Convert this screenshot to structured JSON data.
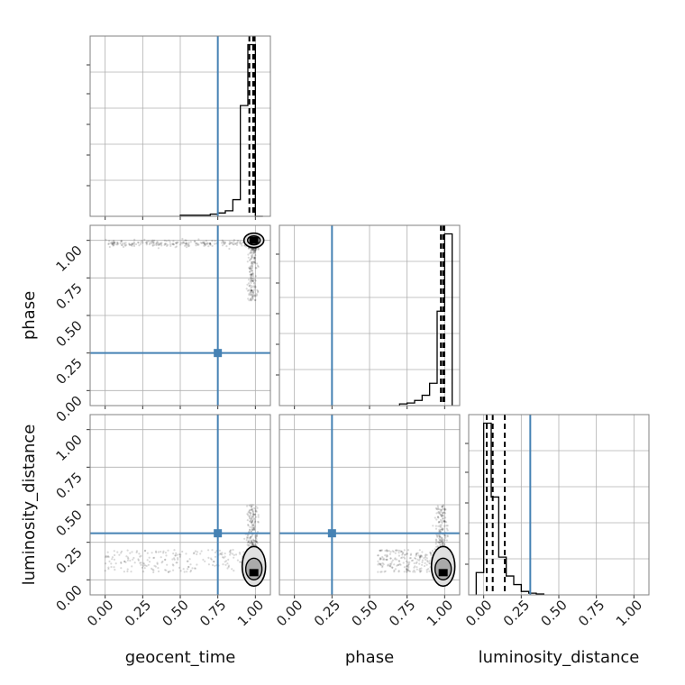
{
  "figure": {
    "type": "corner-plot",
    "colors": {
      "truth": "#4682b4",
      "hist": "#000000",
      "grid": "#b0b0b0",
      "frame": "#808080",
      "scatter": "#000000"
    },
    "parameters": [
      "geocent_time",
      "phase",
      "luminosity_distance"
    ],
    "truths": {
      "geocent_time": 0.75,
      "phase": 0.25,
      "luminosity_distance": 0.31
    }
  },
  "chart_data": [
    {
      "type": "bar",
      "title": "",
      "xlabel": "",
      "xlim": [
        -0.1,
        1.1
      ],
      "histogram": {
        "bin_edges": [
          0.5,
          0.55,
          0.6,
          0.65,
          0.7,
          0.75,
          0.8,
          0.85,
          0.9,
          0.95,
          1.0,
          1.05
        ],
        "values": [
          0.01,
          0.01,
          0.01,
          0.01,
          0.02,
          0.03,
          0.05,
          0.15,
          1.0,
          1.55,
          0.0
        ]
      },
      "quantiles": [
        0.96,
        0.985,
        0.995
      ],
      "truth": 0.75
    },
    {
      "type": "bar",
      "title": "",
      "xlabel": "",
      "xlim": [
        -0.1,
        1.1
      ],
      "histogram": {
        "bin_edges": [
          0.7,
          0.75,
          0.8,
          0.85,
          0.9,
          0.95,
          1.0,
          1.05
        ],
        "values": [
          0.01,
          0.015,
          0.03,
          0.06,
          0.13,
          0.55,
          1.0
        ]
      },
      "quantiles": [
        0.975,
        0.99,
        0.998
      ],
      "truth": 0.25
    },
    {
      "type": "bar",
      "title": "",
      "xlabel": "luminosity_distance",
      "xlim": [
        -0.1,
        1.1
      ],
      "xticks": [
        "0.00",
        "0.25",
        "0.50",
        "0.75",
        "1.00"
      ],
      "histogram": {
        "bin_edges": [
          -0.05,
          0.0,
          0.05,
          0.1,
          0.15,
          0.2,
          0.25,
          0.3,
          0.35,
          0.4
        ],
        "values": [
          0.13,
          1.0,
          0.57,
          0.22,
          0.11,
          0.06,
          0.02,
          0.01,
          0.005
        ]
      },
      "quantiles": [
        0.02,
        0.06,
        0.14
      ],
      "truth": 0.31
    },
    {
      "type": "scatter",
      "title": "",
      "xlabel": "",
      "ylabel": "phase",
      "xlim": [
        -0.1,
        1.1
      ],
      "ylim": [
        -0.1,
        1.1
      ],
      "yticks": [
        "0.00",
        "0.25",
        "0.50",
        "0.75",
        "1.00"
      ],
      "x_param": "geocent_time",
      "y_param": "phase",
      "truth": [
        0.75,
        0.25
      ]
    },
    {
      "type": "scatter",
      "title": "",
      "xlabel": "geocent_time",
      "ylabel": "luminosity_distance",
      "xlim": [
        -0.1,
        1.1
      ],
      "ylim": [
        -0.1,
        1.1
      ],
      "xticks": [
        "0.00",
        "0.25",
        "0.50",
        "0.75",
        "1.00"
      ],
      "yticks": [
        "0.00",
        "0.25",
        "0.50",
        "0.75",
        "1.00"
      ],
      "x_param": "geocent_time",
      "y_param": "luminosity_distance",
      "truth": [
        0.75,
        0.31
      ]
    },
    {
      "type": "scatter",
      "title": "",
      "xlabel": "phase",
      "xlim": [
        -0.1,
        1.1
      ],
      "ylim": [
        -0.1,
        1.1
      ],
      "xticks": [
        "0.00",
        "0.25",
        "0.50",
        "0.75",
        "1.00"
      ],
      "x_param": "phase",
      "y_param": "luminosity_distance",
      "truth": [
        0.25,
        0.31
      ]
    }
  ]
}
